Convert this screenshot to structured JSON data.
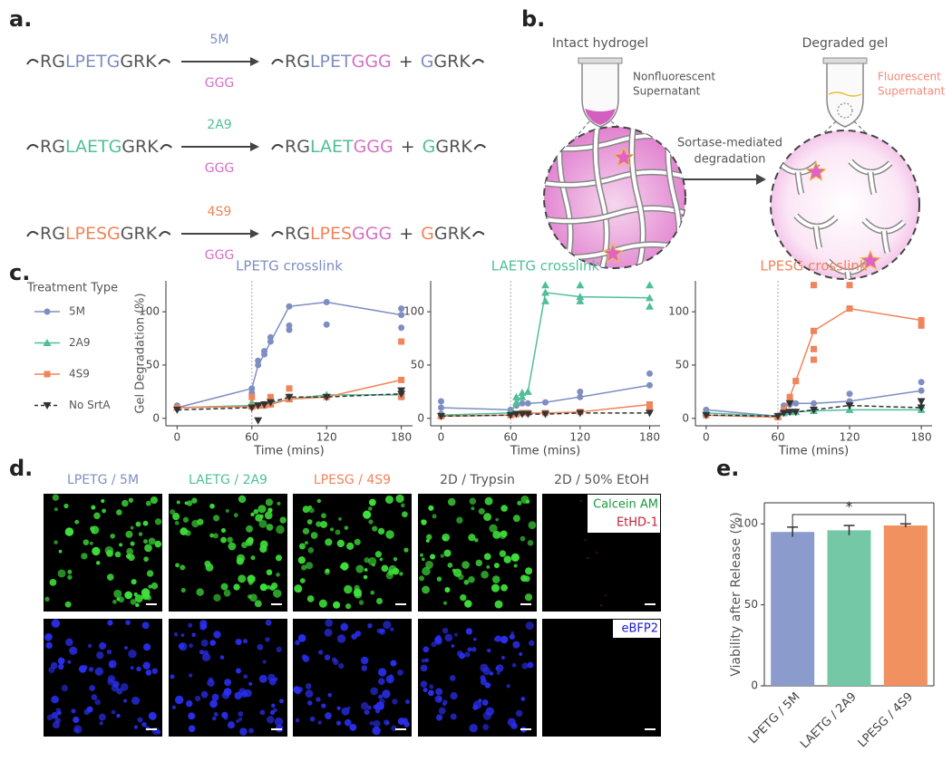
{
  "panels": [
    "a.",
    "b.",
    "c.",
    "d.",
    "e."
  ],
  "reactions": [
    {
      "left": [
        "RG",
        "LPETG",
        "GRK"
      ],
      "enzyme": "5M",
      "nucleophile": "GGG",
      "product": [
        "RG",
        "LPET",
        "GGG"
      ],
      "plus": "+",
      "released": [
        "G",
        "GRK"
      ],
      "color": "#7f8ec2"
    },
    {
      "left": [
        "RG",
        "LAETG",
        "GRK"
      ],
      "enzyme": "2A9",
      "nucleophile": "GGG",
      "product": [
        "RG",
        "LAET",
        "GGG"
      ],
      "plus": "+",
      "released": [
        "G",
        "GRK"
      ],
      "color": "#4fbf98"
    },
    {
      "left": [
        "RG",
        "LPESG",
        "GRK"
      ],
      "enzyme": "4S9",
      "nucleophile": "GGG",
      "product": [
        "RG",
        "LPES",
        "GGG"
      ],
      "plus": "+",
      "released": [
        "G",
        "GRK"
      ],
      "color": "#f0845a"
    }
  ],
  "schematic": {
    "intact": "Intact hydrogel",
    "degraded": "Degraded gel",
    "nonfluorescent": [
      "Nonfluorescent",
      "Supernatant"
    ],
    "fluorescent": [
      "Fluorescent",
      "Supernatant"
    ],
    "process": [
      "Sortase-mediated",
      "degradation"
    ]
  },
  "chart_data": [
    {
      "type": "line",
      "title": "LPETG crosslink",
      "title_color": "#7f8ec2",
      "y_label": "Gel Degradation (%)",
      "x_label": "Time (mins)",
      "legend_title": "Treatment Type",
      "vline": 60,
      "xlim": [
        -9,
        189
      ],
      "ylim": [
        -7,
        129
      ],
      "xticks": [
        0,
        60,
        120,
        180
      ],
      "yticks": [
        0,
        50,
        100
      ],
      "series": [
        {
          "name": "5M",
          "color": "#7f8ec2",
          "marker": "circle",
          "x": [
            0,
            60,
            65,
            70,
            75,
            90,
            120,
            180
          ],
          "values": [
            10,
            28,
            50,
            60,
            72,
            105,
            109,
            97
          ],
          "replicate_x": [
            0,
            60,
            65,
            70,
            75,
            90,
            90,
            120,
            180,
            180
          ],
          "replicate_values": [
            12,
            24,
            54,
            63,
            76,
            83,
            87,
            88,
            85,
            103
          ]
        },
        {
          "name": "2A9",
          "color": "#4fbf98",
          "marker": "triangle",
          "x": [
            0,
            60,
            65,
            70,
            75,
            90,
            120,
            180
          ],
          "values": [
            10,
            12,
            12,
            13,
            14,
            18,
            22,
            22
          ],
          "replicate_x": [
            60,
            90,
            180
          ],
          "replicate_values": [
            15,
            20,
            25
          ],
          "dash": false
        },
        {
          "name": "4S9",
          "color": "#f0845a",
          "marker": "square",
          "x": [
            0,
            60,
            65,
            70,
            75,
            90,
            120,
            180
          ],
          "values": [
            10,
            11,
            12,
            12,
            13,
            18,
            20,
            36
          ],
          "replicate_x": [
            60,
            75,
            90,
            180,
            180
          ],
          "replicate_values": [
            20,
            20,
            28,
            72,
            20
          ]
        },
        {
          "name": "No SrtA",
          "color": "#333333",
          "marker": "down",
          "x": [
            0,
            60,
            65,
            70,
            75,
            90,
            120,
            180
          ],
          "values": [
            8,
            10,
            12,
            13,
            15,
            20,
            20,
            23
          ],
          "replicate_x": [
            65,
            180
          ],
          "replicate_values": [
            -2,
            26
          ],
          "dash": true
        }
      ]
    },
    {
      "type": "line",
      "title": "LAETG crosslink",
      "title_color": "#4fbf98",
      "x_label": "Time (mins)",
      "vline": 60,
      "xlim": [
        -9,
        189
      ],
      "ylim": [
        -7,
        129
      ],
      "xticks": [
        0,
        60,
        120,
        180
      ],
      "yticks": [
        0,
        50,
        100
      ],
      "series": [
        {
          "name": "5M",
          "color": "#7f8ec2",
          "marker": "circle",
          "x": [
            0,
            60,
            65,
            70,
            75,
            90,
            120,
            180
          ],
          "values": [
            10,
            8,
            12,
            14,
            14,
            15,
            20,
            31
          ],
          "replicate_x": [
            0,
            0,
            120,
            180
          ],
          "replicate_values": [
            16,
            4,
            25,
            42
          ]
        },
        {
          "name": "2A9",
          "color": "#4fbf98",
          "marker": "triangle",
          "x": [
            0,
            60,
            65,
            70,
            75,
            90,
            120,
            180
          ],
          "values": [
            3,
            5,
            15,
            20,
            25,
            118,
            114,
            113
          ],
          "replicate_x": [
            65,
            70,
            90,
            90,
            120,
            120,
            180,
            180
          ],
          "replicate_values": [
            20,
            24,
            125,
            110,
            125,
            110,
            125,
            105
          ]
        },
        {
          "name": "4S9",
          "color": "#f0845a",
          "marker": "square",
          "x": [
            0,
            60,
            65,
            70,
            75,
            90,
            120,
            180
          ],
          "values": [
            2,
            3,
            4,
            5,
            5,
            5,
            6,
            13
          ],
          "replicate_x": [
            180
          ],
          "replicate_values": [
            10
          ]
        },
        {
          "name": "No SrtA",
          "color": "#333333",
          "marker": "down",
          "x": [
            0,
            60,
            65,
            70,
            75,
            90,
            120,
            180
          ],
          "values": [
            2,
            3,
            4,
            4,
            4,
            4,
            5,
            5
          ],
          "replicate_x": [],
          "replicate_values": [],
          "dash": true
        }
      ]
    },
    {
      "type": "line",
      "title": "LPESG crosslink",
      "title_color": "#f0845a",
      "x_label": "Time (mins)",
      "vline": 60,
      "xlim": [
        -9,
        189
      ],
      "ylim": [
        -7,
        129
      ],
      "xticks": [
        0,
        60,
        120,
        180
      ],
      "yticks": [
        0,
        50,
        100
      ],
      "series": [
        {
          "name": "5M",
          "color": "#7f8ec2",
          "marker": "circle",
          "x": [
            0,
            60,
            65,
            70,
            75,
            90,
            120,
            180
          ],
          "values": [
            8,
            2,
            12,
            13,
            14,
            14,
            16,
            26
          ],
          "replicate_x": [
            0,
            120,
            180
          ],
          "replicate_values": [
            4,
            23,
            34
          ]
        },
        {
          "name": "2A9",
          "color": "#4fbf98",
          "marker": "triangle",
          "x": [
            0,
            60,
            65,
            70,
            75,
            90,
            120,
            180
          ],
          "values": [
            5,
            2,
            5,
            6,
            6,
            7,
            8,
            8
          ],
          "replicate_x": [
            180
          ],
          "replicate_values": [
            12
          ]
        },
        {
          "name": "4S9",
          "color": "#f0845a",
          "marker": "square",
          "x": [
            0,
            60,
            65,
            70,
            75,
            90,
            120,
            180
          ],
          "values": [
            3,
            1,
            8,
            20,
            35,
            82,
            103,
            92
          ],
          "replicate_x": [
            90,
            90,
            90,
            120,
            180
          ],
          "replicate_values": [
            125,
            65,
            55,
            125,
            87
          ]
        },
        {
          "name": "No SrtA",
          "color": "#333333",
          "marker": "down",
          "x": [
            0,
            60,
            65,
            70,
            75,
            90,
            120,
            180
          ],
          "values": [
            3,
            2,
            5,
            6,
            6,
            8,
            12,
            10
          ],
          "replicate_x": [
            70,
            180
          ],
          "replicate_values": [
            14,
            16
          ],
          "dash": true
        }
      ]
    },
    {
      "type": "bar",
      "y_label": "Viability after Release (%)",
      "categories": [
        "LPETG / 5M",
        "LAETG / 2A9",
        "LPESG / 4S9"
      ],
      "values": [
        95,
        96,
        99
      ],
      "errors": [
        3,
        3,
        1
      ],
      "colors": [
        "#8b9bcb",
        "#74c8a6",
        "#f0915f"
      ],
      "ylim": [
        0,
        113
      ],
      "yticks": [
        0,
        50,
        100
      ],
      "annotation": "*"
    }
  ],
  "microscopy": {
    "columns": [
      "LPETG / 5M",
      "LAETG / 2A9",
      "LPESG / 4S9",
      "2D / Trypsin",
      "2D / 50% EtOH"
    ],
    "column_colors": [
      "#7f8ec2",
      "#4fbf98",
      "#f0845a",
      "#555555",
      "#555555"
    ],
    "stains": [
      "Calcein AM",
      "EtHD-1",
      "eBFP2"
    ]
  }
}
